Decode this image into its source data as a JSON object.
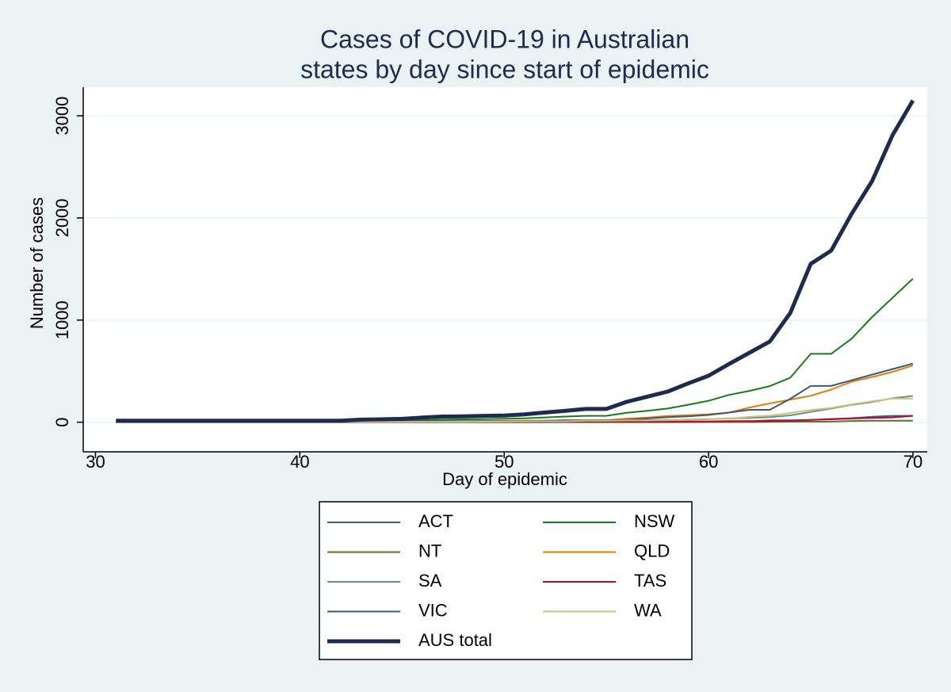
{
  "chart_data": {
    "type": "line",
    "title": [
      "Cases of COVID-19 in Australian",
      "states by day since start of epidemic"
    ],
    "xlabel": "Day of epidemic",
    "ylabel": "Number of cases",
    "x": [
      31,
      32,
      33,
      34,
      35,
      36,
      37,
      38,
      39,
      40,
      41,
      42,
      43,
      44,
      45,
      46,
      47,
      48,
      49,
      50,
      51,
      52,
      53,
      54,
      55,
      56,
      57,
      58,
      59,
      60,
      61,
      62,
      63,
      64,
      65,
      66,
      67,
      68,
      69,
      70
    ],
    "xlim": [
      29.4,
      70.7
    ],
    "xticks": [
      30,
      40,
      50,
      60,
      70
    ],
    "ylim": [
      -290,
      3280
    ],
    "yticks": [
      0,
      1000,
      2000,
      3000
    ],
    "grid": true,
    "series": [
      {
        "name": "ACT",
        "color": "#3a5e8c",
        "width": 2,
        "values": [
          0,
          0,
          0,
          0,
          0,
          0,
          0,
          0,
          0,
          0,
          0,
          0,
          0,
          0,
          0,
          0,
          0,
          0,
          0,
          0,
          0,
          0,
          1,
          1,
          1,
          2,
          2,
          3,
          4,
          6,
          9,
          9,
          19,
          19,
          23,
          32,
          39,
          53,
          62,
          62
        ]
      },
      {
        "name": "NSW",
        "color": "#1a7a1a",
        "width": 2,
        "values": [
          4,
          4,
          4,
          4,
          4,
          4,
          4,
          4,
          4,
          4,
          4,
          4,
          6,
          8,
          14,
          20,
          25,
          28,
          30,
          34,
          38,
          47,
          55,
          62,
          62,
          92,
          112,
          134,
          171,
          210,
          267,
          307,
          353,
          436,
          669,
          669,
          818,
          1029,
          1219,
          1405
        ]
      },
      {
        "name": "NT",
        "color": "#55752f",
        "width": 2,
        "values": [
          0,
          0,
          0,
          0,
          0,
          0,
          0,
          0,
          0,
          0,
          0,
          0,
          0,
          0,
          0,
          0,
          0,
          0,
          0,
          0,
          0,
          0,
          0,
          0,
          0,
          0,
          0,
          0,
          0,
          1,
          1,
          1,
          3,
          5,
          5,
          6,
          12,
          14,
          15,
          15
        ]
      },
      {
        "name": "QLD",
        "color": "#e37e00",
        "width": 2,
        "values": [
          3,
          3,
          3,
          3,
          3,
          3,
          3,
          3,
          3,
          3,
          3,
          3,
          5,
          5,
          6,
          7,
          8,
          9,
          11,
          13,
          15,
          15,
          18,
          20,
          20,
          35,
          46,
          61,
          68,
          78,
          94,
          144,
          184,
          221,
          259,
          319,
          397,
          443,
          493,
          555
        ]
      },
      {
        "name": "SA",
        "color": "#6e8e84",
        "width": 2,
        "values": [
          2,
          2,
          2,
          2,
          2,
          2,
          2,
          2,
          2,
          2,
          2,
          2,
          3,
          3,
          3,
          5,
          7,
          7,
          7,
          7,
          10,
          11,
          12,
          16,
          16,
          18,
          20,
          22,
          25,
          29,
          37,
          42,
          50,
          67,
          100,
          134,
          170,
          197,
          235,
          257
        ]
      },
      {
        "name": "TAS",
        "color": "#c10534",
        "width": 2,
        "values": [
          1,
          1,
          1,
          1,
          1,
          1,
          1,
          1,
          1,
          1,
          1,
          1,
          1,
          1,
          1,
          1,
          2,
          2,
          2,
          2,
          3,
          5,
          5,
          6,
          6,
          6,
          6,
          6,
          7,
          7,
          10,
          10,
          12,
          15,
          22,
          28,
          36,
          42,
          47,
          62
        ]
      },
      {
        "name": "VIC",
        "color": "#3b5a7a",
        "width": 2,
        "values": [
          4,
          4,
          4,
          4,
          4,
          4,
          4,
          4,
          4,
          4,
          4,
          4,
          5,
          7,
          9,
          10,
          11,
          11,
          11,
          11,
          11,
          15,
          18,
          18,
          20,
          23,
          36,
          49,
          57,
          71,
          94,
          121,
          121,
          229,
          355,
          355,
          411,
          466,
          520,
          574
        ]
      },
      {
        "name": "WA",
        "color": "#cac27e",
        "width": 2,
        "values": [
          3,
          3,
          3,
          3,
          3,
          3,
          3,
          3,
          3,
          3,
          3,
          3,
          3,
          3,
          3,
          4,
          4,
          4,
          5,
          6,
          8,
          9,
          9,
          14,
          14,
          17,
          17,
          20,
          28,
          31,
          35,
          52,
          64,
          90,
          120,
          140,
          175,
          205,
          231,
          231
        ]
      },
      {
        "name": "AUS total",
        "color": "#1e2b50",
        "width": 5,
        "values": [
          15,
          15,
          15,
          15,
          15,
          15,
          15,
          15,
          15,
          15,
          15,
          15,
          25,
          28,
          33,
          45,
          55,
          58,
          62,
          65,
          77,
          95,
          112,
          130,
          130,
          200,
          250,
          300,
          380,
          455,
          570,
          680,
          790,
          1070,
          1550,
          1680,
          2040,
          2360,
          2810,
          3150
        ]
      }
    ]
  }
}
